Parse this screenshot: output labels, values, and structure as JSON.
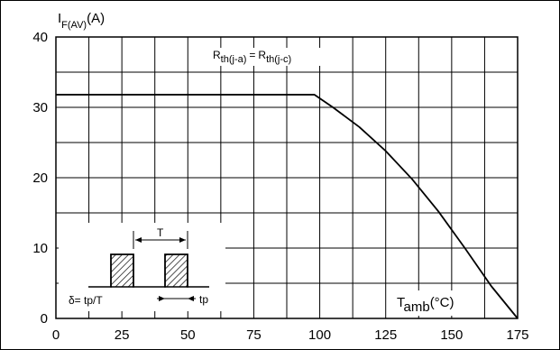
{
  "chart_data": {
    "type": "line",
    "title": "",
    "ylabel": {
      "main": "I",
      "sub": "F(AV)",
      "unit": "(A)"
    },
    "xlabel": {
      "main": "T",
      "sub": "amb",
      "unit": "(°C)"
    },
    "xlim": [
      0,
      175
    ],
    "ylim": [
      0,
      40
    ],
    "x_ticks": [
      0,
      25,
      50,
      75,
      100,
      125,
      150,
      175
    ],
    "y_ticks": [
      0,
      10,
      20,
      30,
      40
    ],
    "x_minor_step": 12.5,
    "y_minor_step": 5,
    "grid": true,
    "series": [
      {
        "x": [
          0,
          98,
          105,
          115,
          125,
          135,
          145,
          155,
          165,
          175
        ],
        "y": [
          31.8,
          31.8,
          30.0,
          27.2,
          23.8,
          19.8,
          15.2,
          10.0,
          4.6,
          0
        ]
      }
    ],
    "annotations": {
      "rth": {
        "r1": "R",
        "s1": "th(j-a)",
        "eq": "=",
        "r2": "R",
        "s2": "th(j-c)"
      },
      "inset": {
        "period_label": "T",
        "duty_label": "δ= tp/T",
        "pulse_label": "tp"
      }
    }
  }
}
